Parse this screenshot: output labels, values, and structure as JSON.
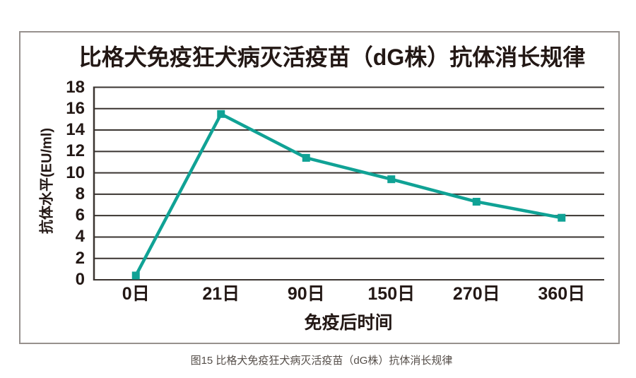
{
  "caption": "图15 比格犬免疫狂犬病灭活疫苗（dG株）抗体消长规律",
  "colors": {
    "line": "#10a295",
    "grid": "#3a3430",
    "text": "#231815",
    "frame": "#97918e",
    "caption": "#554e49"
  },
  "chart_data": {
    "type": "line",
    "title": "比格犬免疫狂犬病灭活疫苗（dG株）抗体消长规律",
    "categories": [
      "0日",
      "21日",
      "90日",
      "150日",
      "270日",
      "360日"
    ],
    "series": [
      {
        "name": "抗体水平",
        "values": [
          0.4,
          15.5,
          11.4,
          9.4,
          7.3,
          5.8
        ]
      }
    ],
    "xlabel": "免疫后时间",
    "ylabel": "抗体水平(EU/ml)",
    "ylim": [
      0,
      18
    ],
    "ytick_step": 2,
    "grid": "horizontal-only",
    "legend_position": "none",
    "marker": "square"
  }
}
